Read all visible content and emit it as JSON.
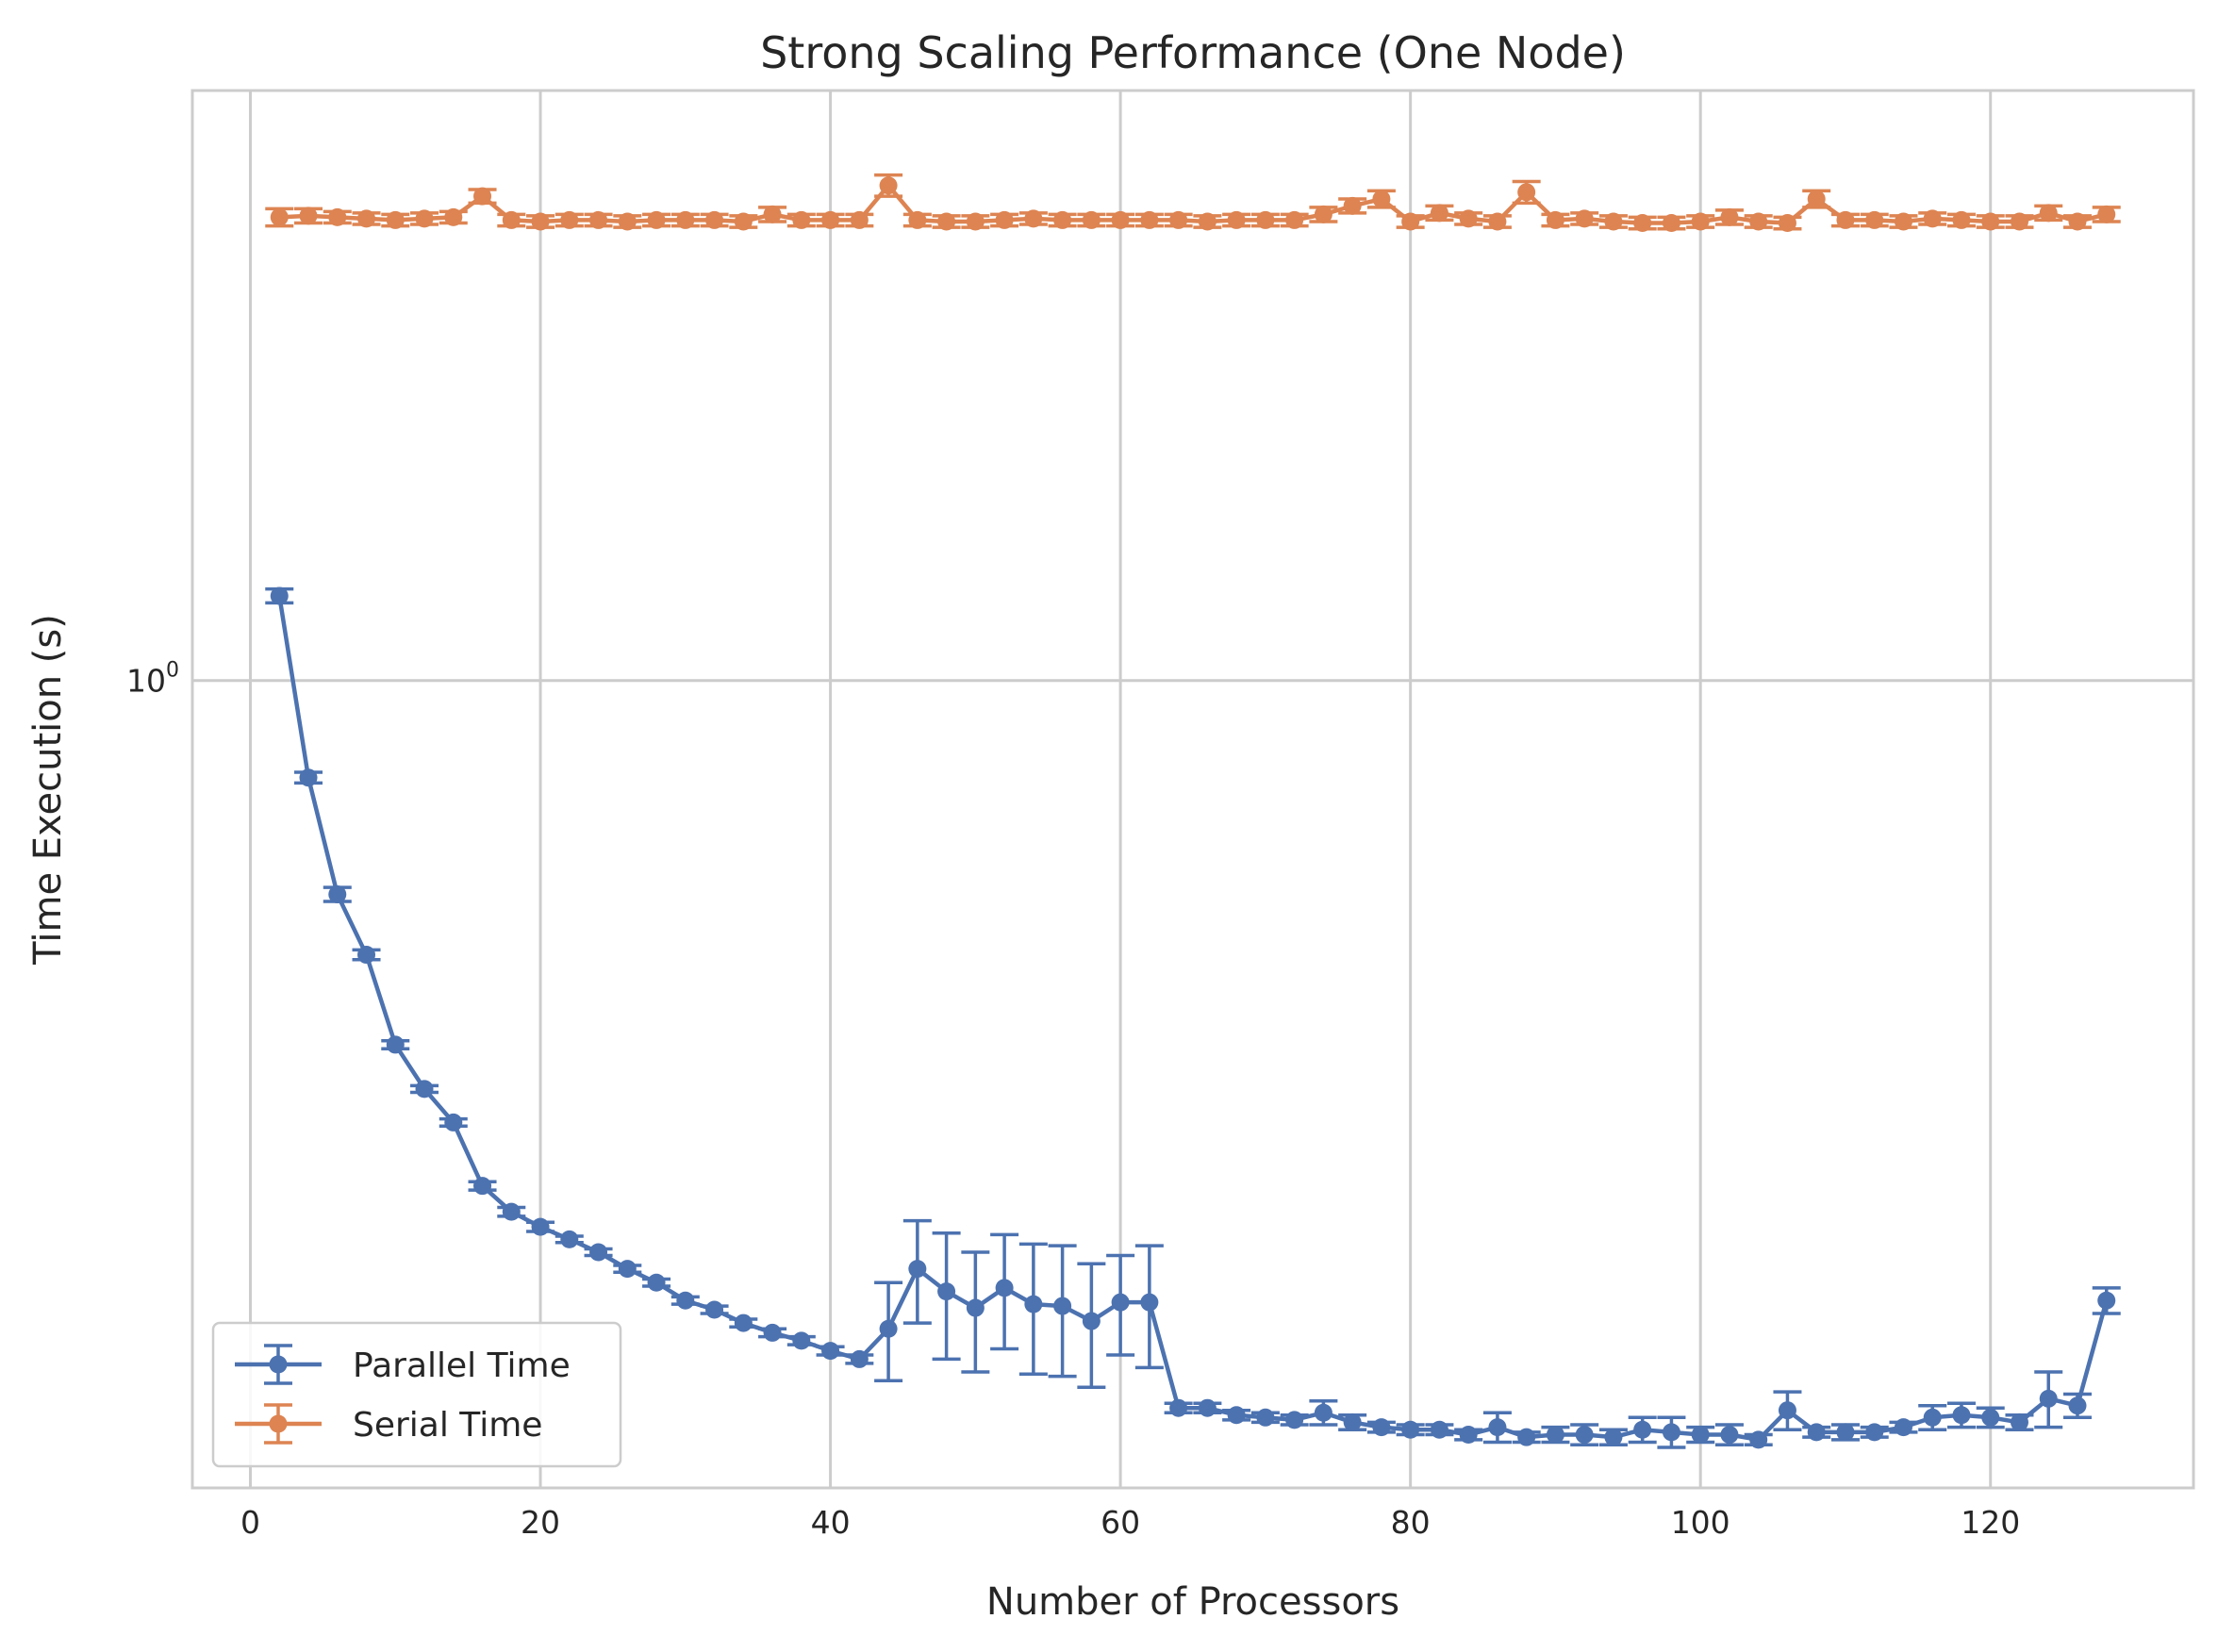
{
  "chart_data": {
    "type": "line",
    "title": "Strong Scaling Performance (One Node)",
    "xlabel": "Number of Processors",
    "ylabel": "Time Execution (s)",
    "xlim": [
      -4,
      134
    ],
    "ylim": [
      0.15,
      4.0
    ],
    "yscale": "log",
    "grid": true,
    "legend_position": "lower-left",
    "xticks": [
      0,
      20,
      40,
      60,
      80,
      100,
      120
    ],
    "xtick_labels": [
      "0",
      "20",
      "40",
      "60",
      "80",
      "100",
      "120"
    ],
    "yticks": [
      1.0
    ],
    "ytick_labels": [
      {
        "base": "10",
        "exp": "0"
      }
    ],
    "x": [
      2,
      4,
      6,
      8,
      10,
      12,
      14,
      16,
      18,
      20,
      22,
      24,
      26,
      28,
      30,
      32,
      34,
      36,
      38,
      40,
      42,
      44,
      46,
      48,
      50,
      52,
      54,
      56,
      58,
      60,
      62,
      64,
      66,
      68,
      70,
      72,
      74,
      76,
      78,
      80,
      82,
      84,
      86,
      88,
      90,
      92,
      94,
      96,
      98,
      100,
      102,
      104,
      106,
      108,
      110,
      112,
      114,
      116,
      118,
      120,
      122,
      124,
      126,
      128
    ],
    "series": [
      {
        "name": "Parallel Time",
        "color": "#4c72b0",
        "values": [
          1.22,
          0.796,
          0.605,
          0.525,
          0.425,
          0.383,
          0.354,
          0.305,
          0.287,
          0.277,
          0.269,
          0.261,
          0.251,
          0.243,
          0.233,
          0.228,
          0.221,
          0.216,
          0.212,
          0.207,
          0.203,
          0.218,
          0.251,
          0.238,
          0.229,
          0.24,
          0.231,
          0.23,
          0.222,
          0.232,
          0.232,
          0.181,
          0.181,
          0.178,
          0.177,
          0.176,
          0.179,
          0.175,
          0.173,
          0.172,
          0.172,
          0.17,
          0.173,
          0.169,
          0.17,
          0.17,
          0.169,
          0.172,
          0.171,
          0.17,
          0.17,
          0.168,
          0.18,
          0.171,
          0.171,
          0.171,
          0.173,
          0.177,
          0.178,
          0.177,
          0.175,
          0.185,
          0.182,
          0.233
        ],
        "errors": [
          0.02,
          0.01,
          0.01,
          0.006,
          0.004,
          0.003,
          0.003,
          0.003,
          0.003,
          0.003,
          0.002,
          0.002,
          0.002,
          0.002,
          0.002,
          0.002,
          0.002,
          0.002,
          0.002,
          0.002,
          0.002,
          0.025,
          0.03,
          0.035,
          0.032,
          0.032,
          0.035,
          0.035,
          0.032,
          0.027,
          0.033,
          0.002,
          0.002,
          0.002,
          0.002,
          0.002,
          0.005,
          0.003,
          0.002,
          0.002,
          0.002,
          0.002,
          0.006,
          0.002,
          0.003,
          0.004,
          0.003,
          0.005,
          0.006,
          0.003,
          0.004,
          0.002,
          0.008,
          0.002,
          0.003,
          0.002,
          0.002,
          0.005,
          0.005,
          0.004,
          0.003,
          0.012,
          0.005,
          0.007
        ]
      },
      {
        "name": "Serial Time",
        "color": "#dd8452",
        "values": [
          2.97,
          2.98,
          2.97,
          2.96,
          2.95,
          2.96,
          2.97,
          3.12,
          2.95,
          2.94,
          2.95,
          2.95,
          2.94,
          2.95,
          2.95,
          2.95,
          2.94,
          2.99,
          2.95,
          2.95,
          2.95,
          3.2,
          2.95,
          2.94,
          2.94,
          2.95,
          2.96,
          2.95,
          2.95,
          2.95,
          2.95,
          2.95,
          2.94,
          2.95,
          2.95,
          2.95,
          2.99,
          3.05,
          3.1,
          2.94,
          3.0,
          2.96,
          2.94,
          3.15,
          2.95,
          2.96,
          2.94,
          2.93,
          2.93,
          2.94,
          2.97,
          2.94,
          2.93,
          3.1,
          2.95,
          2.95,
          2.94,
          2.96,
          2.95,
          2.94,
          2.94,
          3.0,
          2.94,
          2.99
        ],
        "errors": [
          0.06,
          0.05,
          0.04,
          0.04,
          0.04,
          0.04,
          0.04,
          0.05,
          0.04,
          0.04,
          0.04,
          0.04,
          0.04,
          0.04,
          0.04,
          0.04,
          0.04,
          0.05,
          0.04,
          0.04,
          0.04,
          0.08,
          0.04,
          0.04,
          0.04,
          0.04,
          0.04,
          0.04,
          0.04,
          0.04,
          0.04,
          0.04,
          0.04,
          0.04,
          0.04,
          0.04,
          0.05,
          0.05,
          0.06,
          0.04,
          0.05,
          0.04,
          0.04,
          0.08,
          0.04,
          0.04,
          0.04,
          0.04,
          0.04,
          0.04,
          0.05,
          0.04,
          0.04,
          0.06,
          0.04,
          0.04,
          0.04,
          0.04,
          0.04,
          0.04,
          0.04,
          0.05,
          0.04,
          0.05
        ]
      }
    ]
  }
}
